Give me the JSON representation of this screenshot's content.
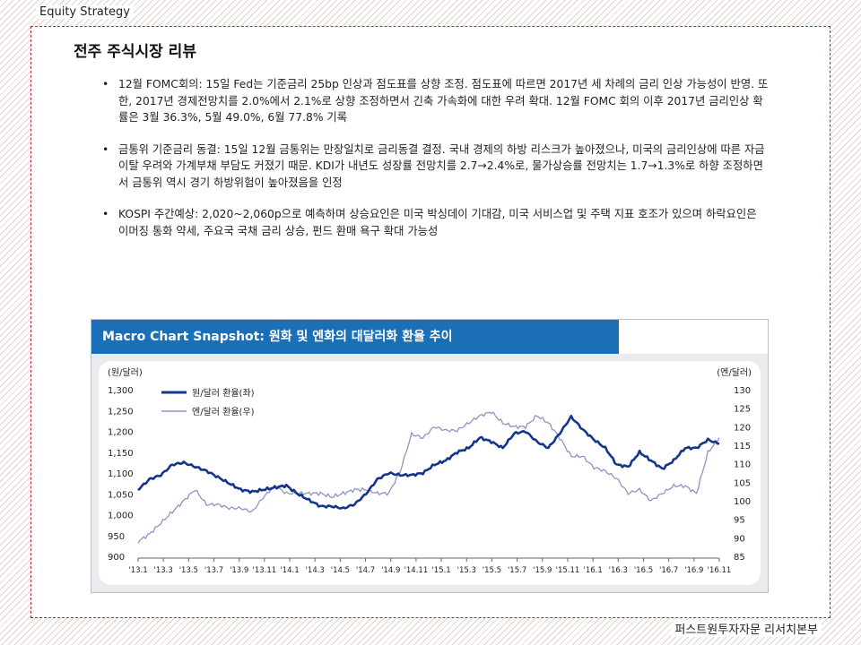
{
  "header": {
    "category": "Equity Strategy"
  },
  "page": {
    "title": "전주 주식시장 리뷰"
  },
  "bullets": [
    {
      "text": "12월 FOMC회의: 15일 Fed는 기준금리 25bp 인상과 점도표를 상향 조정. 점도표에 따르면 2017년 세 차례의 금리 인상 가능성이 반영. 또한, 2017년 경제전망치를 2.0%에서 2.1%로 상향 조정하면서 긴축 가속화에 대한 우려 확대. 12월 FOMC 회의 이후 2017년 금리인상 확률은 3월 36.3%, 5월 49.0%, 6월 77.8% 기록"
    },
    {
      "text": "금통위 기준금리 동결: 15일 12월 금통위는 만장일치로 금리동결 결정. 국내 경제의 하방 리스크가 높아졌으나, 미국의 금리인상에 따른 자금이탈 우려와 가계부채 부담도 커졌기 때문. KDI가 내년도 성장률 전망치를 2.7→2.4%로, 물가상승률 전망치는 1.7→1.3%로 하향 조정하면서 금통위 역시 경기 하방위험이 높아졌음을 인정"
    },
    {
      "text": "KOSPI 주간예상: 2,020~2,060p으로 예측하며 상승요인은 미국 박싱데이 기대감, 미국 서비스업 및 주택 지표 호조가 있으며 하락요인은 이머징 통화 약세, 주요국 국채 금리 상승, 펀드 환매 욕구 확대 가능성"
    }
  ],
  "chart": {
    "title": "Macro Chart Snapshot: 원화 및 엔화의 대달러화 환율 추이"
  },
  "chart_data": {
    "type": "line",
    "title": "Macro Chart Snapshot: 원화 및 엔화의 대달러화 환율 추이",
    "y_left_unit": "(원/달러)",
    "y_right_unit": "(엔/달러)",
    "y_left_ticks": [
      "1,300",
      "1,250",
      "1,200",
      "1,150",
      "1,100",
      "1,050",
      "1,000",
      "950",
      "900"
    ],
    "y_right_ticks": [
      "130",
      "125",
      "120",
      "115",
      "110",
      "105",
      "100",
      "95",
      "90",
      "85"
    ],
    "ylim_left": [
      900,
      1300
    ],
    "ylim_right": [
      85,
      130
    ],
    "x_ticks": [
      "'13.1",
      "'13.3",
      "'13.5",
      "'13.7",
      "'13.9",
      "'13.11",
      "'14.1",
      "'14.3",
      "'14.5",
      "'14.7",
      "'14.9",
      "'14.11",
      "'15.1",
      "'15.3",
      "'15.5",
      "'15.7",
      "'15.9",
      "'15.11",
      "'16.1",
      "'16.3",
      "'16.5",
      "'16.7",
      "'16.9",
      "'16.11"
    ],
    "grid": false,
    "legend_position": "top-left",
    "colors": {
      "krw": "#14358a",
      "jpy": "#8a96c2"
    },
    "series": [
      {
        "name": "원/달러 환율(좌)",
        "axis": "left",
        "values": [
          1060,
          1085,
          1095,
          1120,
          1125,
          1115,
          1105,
          1090,
          1075,
          1060,
          1055,
          1060,
          1065,
          1070,
          1050,
          1035,
          1020,
          1020,
          1015,
          1025,
          1050,
          1085,
          1100,
          1095,
          1095,
          1100,
          1120,
          1130,
          1150,
          1160,
          1185,
          1175,
          1160,
          1195,
          1200,
          1175,
          1160,
          1195,
          1235,
          1205,
          1180,
          1160,
          1120,
          1115,
          1150,
          1130,
          1110,
          1130,
          1160,
          1160,
          1180,
          1170
        ]
      },
      {
        "name": "엔/달러 환율(우)",
        "axis": "right",
        "values": [
          89,
          91,
          94,
          97,
          100,
          103,
          99,
          99,
          98,
          98,
          97,
          101,
          104,
          102,
          102,
          102,
          102,
          101,
          102,
          103,
          103,
          102,
          102,
          108,
          118,
          117,
          120,
          119,
          119,
          121,
          123,
          124,
          121,
          120,
          120,
          123,
          121,
          117,
          112,
          112,
          109,
          108,
          106,
          102,
          103,
          100,
          102,
          104,
          104,
          102,
          113,
          117
        ]
      }
    ]
  }
}
